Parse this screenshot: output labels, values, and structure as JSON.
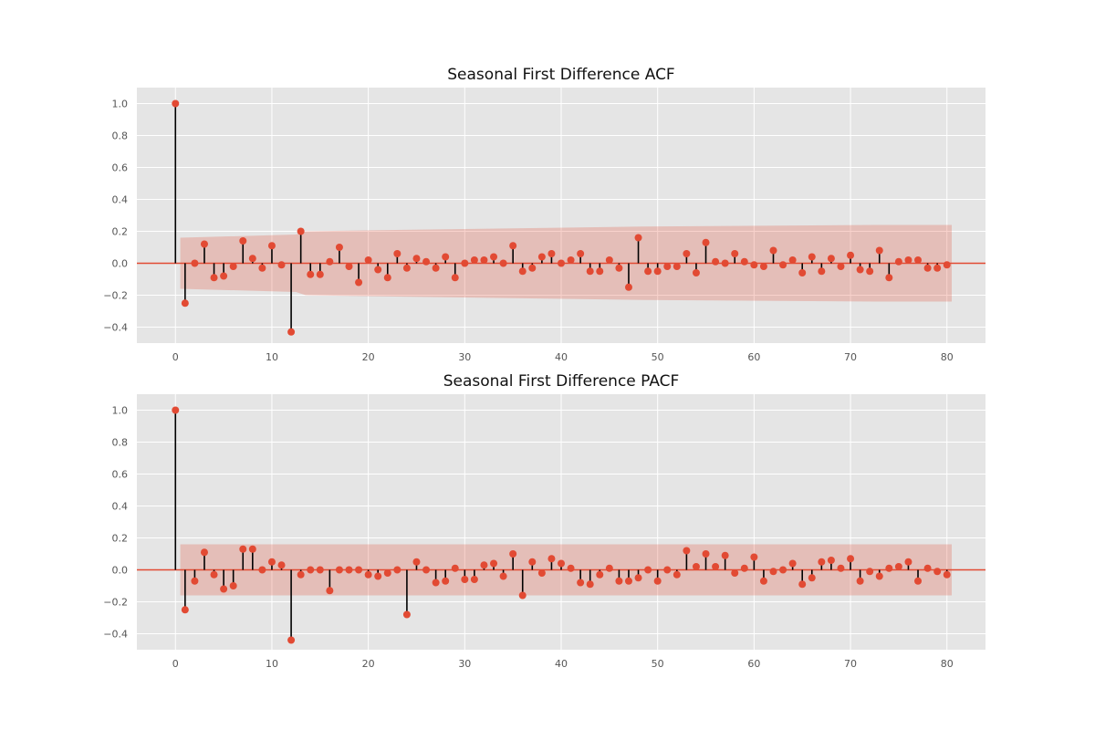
{
  "chart_data": [
    {
      "type": "stem",
      "title": "Seasonal First Difference ACF",
      "xlabel": "",
      "ylabel": "",
      "xlim": [
        -4,
        84
      ],
      "ylim": [
        -0.5,
        1.1
      ],
      "xticks": [
        0,
        10,
        20,
        30,
        40,
        50,
        60,
        70,
        80
      ],
      "yticks": [
        -0.4,
        -0.2,
        0.0,
        0.2,
        0.4,
        0.6,
        0.8,
        1.0
      ],
      "grid": true,
      "lags": [
        0,
        1,
        2,
        3,
        4,
        5,
        6,
        7,
        8,
        9,
        10,
        11,
        12,
        13,
        14,
        15,
        16,
        17,
        18,
        19,
        20,
        21,
        22,
        23,
        24,
        25,
        26,
        27,
        28,
        29,
        30,
        31,
        32,
        33,
        34,
        35,
        36,
        37,
        38,
        39,
        40,
        41,
        42,
        43,
        44,
        45,
        46,
        47,
        48,
        49,
        50,
        51,
        52,
        53,
        54,
        55,
        56,
        57,
        58,
        59,
        60,
        61,
        62,
        63,
        64,
        65,
        66,
        67,
        68,
        69,
        70,
        71,
        72,
        73,
        74,
        75,
        76,
        77,
        78,
        79,
        80
      ],
      "values": [
        1.0,
        -0.25,
        0.0,
        0.12,
        -0.09,
        -0.08,
        -0.02,
        0.14,
        0.03,
        -0.03,
        0.11,
        -0.01,
        -0.43,
        0.2,
        -0.07,
        -0.07,
        0.01,
        0.1,
        -0.02,
        -0.12,
        0.02,
        -0.04,
        -0.09,
        0.06,
        -0.03,
        0.03,
        0.01,
        -0.03,
        0.04,
        -0.09,
        0.0,
        0.02,
        0.02,
        0.04,
        0.0,
        0.11,
        -0.05,
        -0.03,
        0.04,
        0.06,
        0.0,
        0.02,
        0.06,
        -0.05,
        -0.05,
        0.02,
        -0.03,
        -0.15,
        0.16,
        -0.05,
        -0.05,
        -0.02,
        -0.02,
        0.06,
        -0.06,
        0.13,
        0.01,
        0.0,
        0.06,
        0.01,
        -0.01,
        -0.02,
        0.08,
        -0.01,
        0.02,
        -0.06,
        0.04,
        -0.05,
        0.03,
        -0.02,
        0.05,
        -0.04,
        -0.05,
        0.08,
        -0.09,
        0.01,
        0.02,
        0.02,
        -0.03,
        -0.03,
        -0.01
      ],
      "confidence_band": {
        "lags": [
          0.5,
          12.5,
          13.5,
          24.5,
          48.5,
          72.5,
          80.5
        ],
        "upper": [
          0.16,
          0.18,
          0.2,
          0.21,
          0.23,
          0.24,
          0.24
        ],
        "lower": [
          -0.16,
          -0.18,
          -0.2,
          -0.21,
          -0.23,
          -0.24,
          -0.24
        ]
      },
      "colors": {
        "marker": "#e24a33",
        "stem": "#000000",
        "band": "#e24a33",
        "zero_line": "#e24a33",
        "background": "#e5e5e5",
        "grid": "#ffffff"
      }
    },
    {
      "type": "stem",
      "title": "Seasonal First Difference PACF",
      "xlabel": "",
      "ylabel": "",
      "xlim": [
        -4,
        84
      ],
      "ylim": [
        -0.5,
        1.1
      ],
      "xticks": [
        0,
        10,
        20,
        30,
        40,
        50,
        60,
        70,
        80
      ],
      "yticks": [
        -0.4,
        -0.2,
        0.0,
        0.2,
        0.4,
        0.6,
        0.8,
        1.0
      ],
      "grid": true,
      "lags": [
        0,
        1,
        2,
        3,
        4,
        5,
        6,
        7,
        8,
        9,
        10,
        11,
        12,
        13,
        14,
        15,
        16,
        17,
        18,
        19,
        20,
        21,
        22,
        23,
        24,
        25,
        26,
        27,
        28,
        29,
        30,
        31,
        32,
        33,
        34,
        35,
        36,
        37,
        38,
        39,
        40,
        41,
        42,
        43,
        44,
        45,
        46,
        47,
        48,
        49,
        50,
        51,
        52,
        53,
        54,
        55,
        56,
        57,
        58,
        59,
        60,
        61,
        62,
        63,
        64,
        65,
        66,
        67,
        68,
        69,
        70,
        71,
        72,
        73,
        74,
        75,
        76,
        77,
        78,
        79,
        80
      ],
      "values": [
        1.0,
        -0.25,
        -0.07,
        0.11,
        -0.03,
        -0.12,
        -0.1,
        0.13,
        0.13,
        0.0,
        0.05,
        0.03,
        -0.44,
        -0.03,
        0.0,
        0.0,
        -0.13,
        0.0,
        0.0,
        0.0,
        -0.03,
        -0.04,
        -0.02,
        0.0,
        -0.28,
        0.05,
        0.0,
        -0.08,
        -0.07,
        0.01,
        -0.06,
        -0.06,
        0.03,
        0.04,
        -0.04,
        0.1,
        -0.16,
        0.05,
        -0.02,
        0.07,
        0.04,
        0.01,
        -0.08,
        -0.09,
        -0.03,
        0.01,
        -0.07,
        -0.07,
        -0.05,
        0.0,
        -0.07,
        0.0,
        -0.03,
        0.12,
        0.02,
        0.1,
        0.02,
        0.09,
        -0.02,
        0.01,
        0.08,
        -0.07,
        -0.01,
        0.0,
        0.04,
        -0.09,
        -0.05,
        0.05,
        0.06,
        0.01,
        0.07,
        -0.07,
        -0.01,
        -0.04,
        0.01,
        0.02,
        0.05,
        -0.07,
        0.01,
        -0.01,
        -0.03
      ],
      "confidence_band": {
        "lags": [
          0.5,
          80.5
        ],
        "upper": [
          0.16,
          0.16
        ],
        "lower": [
          -0.16,
          -0.16
        ]
      },
      "colors": {
        "marker": "#e24a33",
        "stem": "#000000",
        "band": "#e24a33",
        "zero_line": "#e24a33",
        "background": "#e5e5e5",
        "grid": "#ffffff"
      }
    }
  ]
}
